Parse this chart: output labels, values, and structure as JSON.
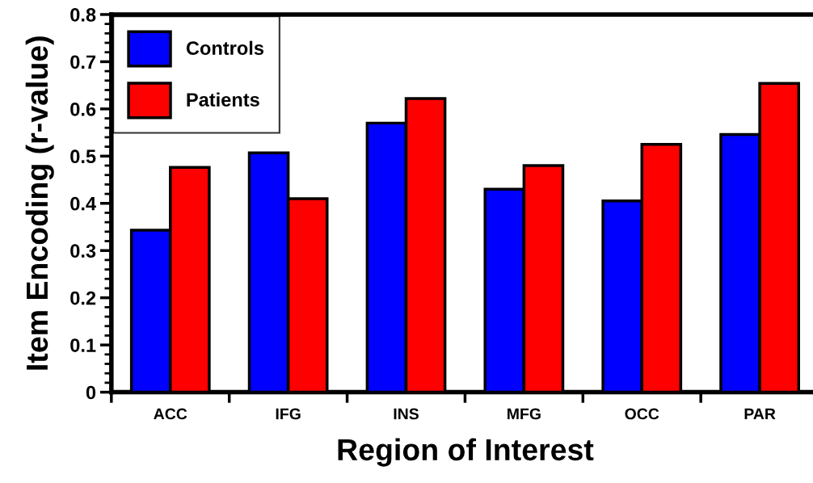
{
  "chart_data": {
    "type": "bar",
    "categories": [
      "ACC",
      "IFG",
      "INS",
      "MFG",
      "OCC",
      "PAR"
    ],
    "series": [
      {
        "name": "Controls",
        "color": "#0000ff",
        "values": [
          0.343,
          0.507,
          0.57,
          0.43,
          0.405,
          0.546
        ]
      },
      {
        "name": "Patients",
        "color": "#ff0000",
        "values": [
          0.476,
          0.41,
          0.622,
          0.48,
          0.525,
          0.654
        ]
      }
    ],
    "xlabel": "Region of Interest",
    "ylabel": "Item Encoding (r-value)",
    "ylim": [
      0,
      0.8
    ],
    "yticks": [
      {
        "value": 0,
        "label": "0"
      },
      0.1,
      0.2,
      0.3,
      0.4,
      0.5,
      0.6,
      0.7,
      0.8
    ],
    "grid": false,
    "legend": "top left"
  }
}
